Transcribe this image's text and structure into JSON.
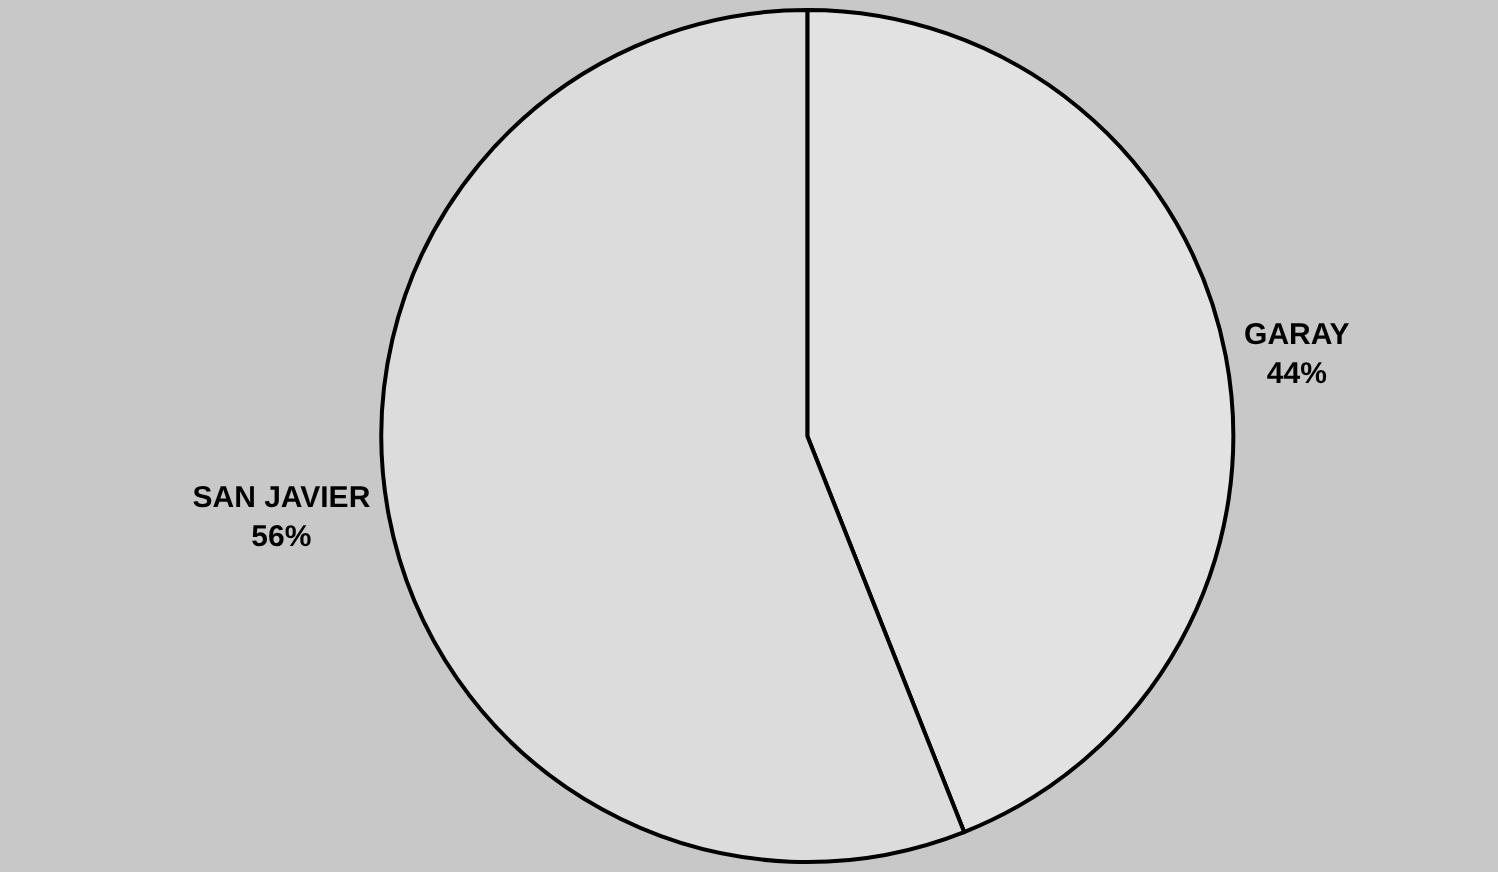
{
  "chart_data": {
    "type": "pie",
    "categories": [
      "GARAY",
      "SAN JAVIER"
    ],
    "values": [
      44,
      56
    ],
    "value_labels": [
      "44%",
      "56%"
    ],
    "colors": [
      "#e2e2e2",
      "#dcdcdc"
    ],
    "legend": false
  }
}
